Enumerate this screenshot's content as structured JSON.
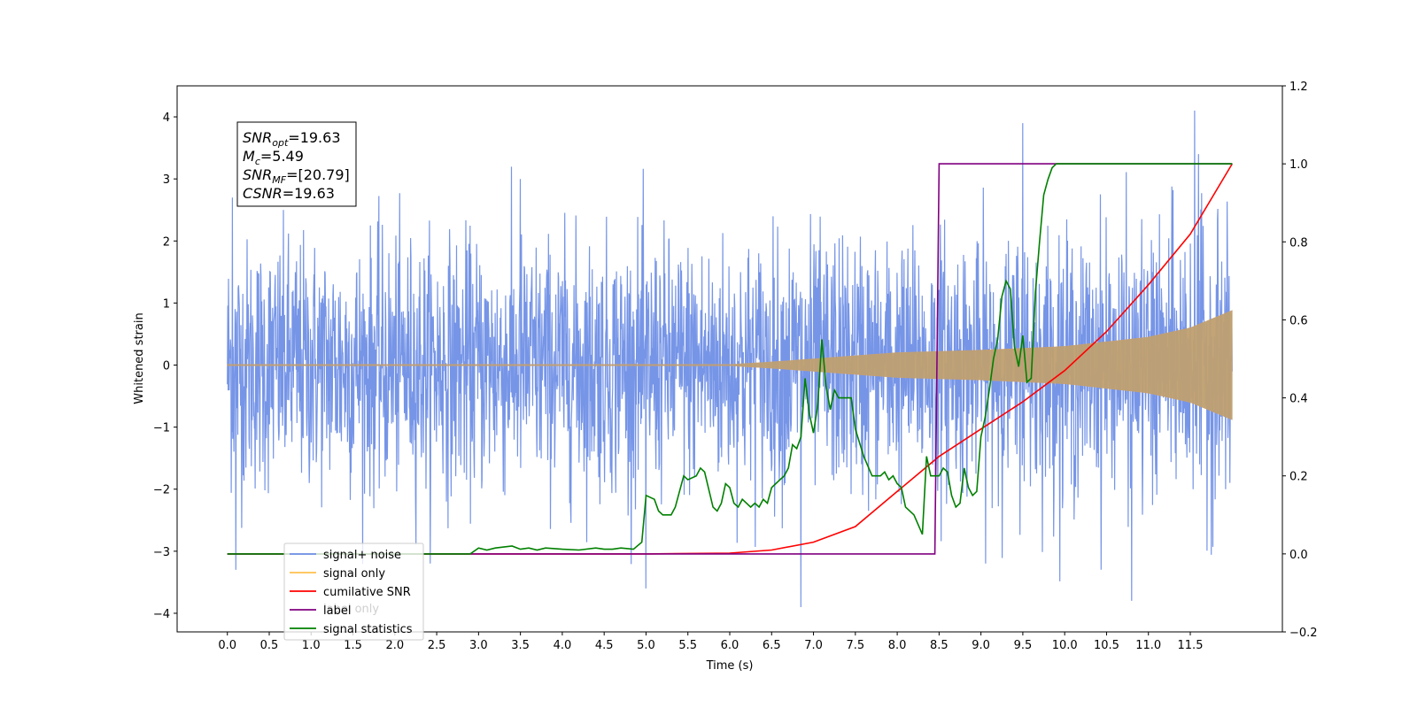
{
  "chart_data": {
    "type": "line",
    "xlabel": "Time (s)",
    "ylabel": "Whitened strain",
    "xlim": [
      -0.6,
      12.6
    ],
    "ylim": [
      -4.3,
      4.5
    ],
    "y2lim": [
      -0.2,
      1.2
    ],
    "xticks": [
      "0.0",
      "0.5",
      "1.0",
      "1.5",
      "2.0",
      "2.5",
      "3.0",
      "3.5",
      "4.0",
      "4.5",
      "5.0",
      "5.5",
      "6.0",
      "6.5",
      "7.0",
      "7.5",
      "8.0",
      "8.5",
      "9.0",
      "9.5",
      "10.0",
      "10.5",
      "11.0",
      "11.5"
    ],
    "yticks": [
      "−4",
      "−3",
      "−2",
      "−1",
      "0",
      "1",
      "2",
      "3",
      "4"
    ],
    "y2ticks": [
      "−0.2",
      "0.0",
      "0.2",
      "0.4",
      "0.6",
      "0.8",
      "1.0",
      "1.2"
    ],
    "stats_box": [
      {
        "base": "SNR",
        "sub": "opt",
        "value": "=19.63"
      },
      {
        "base": "M",
        "sub": "c",
        "value": "=5.49"
      },
      {
        "base": "SNR",
        "sub": "MF",
        "value": "=[20.79]"
      },
      {
        "base": "CSNR",
        "sub": "",
        "value": "=19.63"
      }
    ],
    "legend": [
      {
        "label": "signal+ noise",
        "color": "#6f8fe6"
      },
      {
        "label": "signal only",
        "color": "#ffc04d"
      },
      {
        "label": "cumilative SNR",
        "color": "#ff0000"
      },
      {
        "label": "label",
        "color": "#800080"
      },
      {
        "label": "signal statistics",
        "color": "#008000"
      }
    ],
    "legend_overlap_text": "label only",
    "legend_location": "lower-left",
    "series": [
      {
        "name": "signal+ noise",
        "axis": "left",
        "color": "#6f8fe6",
        "x_range": [
          0,
          12
        ],
        "noise_sigma": 1.0,
        "envelope": "chirp",
        "spikes": [
          [
            0.06,
            2.7
          ],
          [
            0.1,
            -3.3
          ],
          [
            3.5,
            3.0
          ],
          [
            5.0,
            3.6
          ],
          [
            5.0,
            -3.6
          ],
          [
            6.85,
            -3.9
          ],
          [
            9.5,
            3.9
          ],
          [
            10.8,
            -3.8
          ],
          [
            11.55,
            4.1
          ],
          [
            11.6,
            3.4
          ]
        ]
      },
      {
        "name": "signal only",
        "axis": "left",
        "color": "#ffc04d",
        "x_range": [
          0,
          12
        ],
        "envelope": [
          [
            0,
            0
          ],
          [
            6.0,
            0.01
          ],
          [
            6.5,
            0.05
          ],
          [
            7.0,
            0.1
          ],
          [
            8.0,
            0.2
          ],
          [
            9.0,
            0.24
          ],
          [
            10.0,
            0.3
          ],
          [
            11.0,
            0.45
          ],
          [
            11.5,
            0.6
          ],
          [
            12.0,
            0.88
          ]
        ]
      },
      {
        "name": "cumilative SNR",
        "axis": "right",
        "color": "#ff0000",
        "x": [
          0,
          5.0,
          6.0,
          6.5,
          7.0,
          7.5,
          8.0,
          8.5,
          9.0,
          9.5,
          10.0,
          10.5,
          11.0,
          11.5,
          12.0
        ],
        "y": [
          0,
          0,
          0.002,
          0.01,
          0.03,
          0.07,
          0.16,
          0.25,
          0.32,
          0.39,
          0.47,
          0.57,
          0.69,
          0.82,
          1.0
        ]
      },
      {
        "name": "label",
        "axis": "right",
        "color": "#800080",
        "x": [
          0,
          8.45,
          8.5,
          12.0
        ],
        "y": [
          0,
          0,
          1.0,
          1.0
        ]
      },
      {
        "name": "signal statistics",
        "axis": "right",
        "color": "#008000",
        "x": [
          0,
          2.9,
          3.0,
          3.1,
          3.2,
          3.4,
          3.5,
          3.6,
          3.7,
          3.8,
          4.0,
          4.2,
          4.4,
          4.5,
          4.6,
          4.7,
          4.85,
          4.95,
          5.0,
          5.1,
          5.15,
          5.2,
          5.3,
          5.35,
          5.45,
          5.5,
          5.6,
          5.65,
          5.7,
          5.8,
          5.85,
          5.9,
          5.95,
          6.0,
          6.05,
          6.1,
          6.15,
          6.2,
          6.25,
          6.3,
          6.35,
          6.4,
          6.45,
          6.5,
          6.55,
          6.6,
          6.65,
          6.7,
          6.75,
          6.8,
          6.85,
          6.9,
          6.95,
          7.0,
          7.05,
          7.1,
          7.15,
          7.2,
          7.25,
          7.3,
          7.35,
          7.4,
          7.45,
          7.5,
          7.6,
          7.7,
          7.8,
          7.85,
          7.9,
          7.95,
          8.0,
          8.05,
          8.1,
          8.2,
          8.3,
          8.35,
          8.4,
          8.5,
          8.55,
          8.6,
          8.65,
          8.7,
          8.75,
          8.8,
          8.85,
          8.9,
          8.95,
          9.0,
          9.05,
          9.1,
          9.15,
          9.2,
          9.25,
          9.3,
          9.35,
          9.4,
          9.45,
          9.5,
          9.55,
          9.6,
          9.65,
          9.7,
          9.75,
          9.8,
          9.85,
          9.9,
          9.95,
          10.0,
          10.05,
          12.0
        ],
        "y": [
          0,
          0,
          0.015,
          0.01,
          0.015,
          0.02,
          0.012,
          0.015,
          0.01,
          0.015,
          0.012,
          0.01,
          0.015,
          0.012,
          0.012,
          0.015,
          0.012,
          0.03,
          0.15,
          0.14,
          0.11,
          0.1,
          0.1,
          0.12,
          0.2,
          0.19,
          0.2,
          0.22,
          0.21,
          0.12,
          0.11,
          0.13,
          0.18,
          0.17,
          0.13,
          0.12,
          0.14,
          0.13,
          0.12,
          0.13,
          0.12,
          0.14,
          0.13,
          0.17,
          0.18,
          0.19,
          0.2,
          0.22,
          0.28,
          0.27,
          0.3,
          0.45,
          0.36,
          0.31,
          0.38,
          0.55,
          0.43,
          0.37,
          0.42,
          0.4,
          0.4,
          0.4,
          0.4,
          0.32,
          0.25,
          0.2,
          0.2,
          0.21,
          0.19,
          0.2,
          0.18,
          0.17,
          0.12,
          0.1,
          0.05,
          0.25,
          0.2,
          0.2,
          0.22,
          0.21,
          0.15,
          0.12,
          0.13,
          0.22,
          0.17,
          0.15,
          0.16,
          0.3,
          0.35,
          0.42,
          0.5,
          0.55,
          0.66,
          0.7,
          0.68,
          0.53,
          0.48,
          0.56,
          0.44,
          0.45,
          0.67,
          0.8,
          0.92,
          0.96,
          0.99,
          1.0,
          1.0,
          1.0,
          1.0,
          1.0
        ]
      }
    ]
  }
}
